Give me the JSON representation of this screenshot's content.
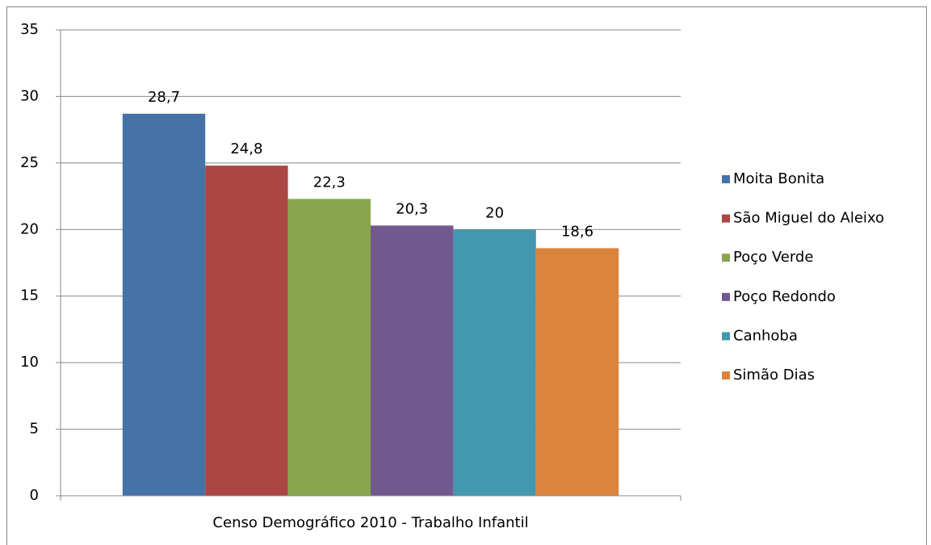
{
  "chart_data": {
    "type": "bar",
    "categories": [
      "Censo Demográfico 2010 - Trabalho Infantil"
    ],
    "series": [
      {
        "name": "Moita Bonita",
        "color": "#4572a7",
        "values": [
          28.7
        ],
        "value_labels": [
          "28,7"
        ]
      },
      {
        "name": "São Miguel do Aleixo",
        "color": "#aa4643",
        "values": [
          24.8
        ],
        "value_labels": [
          "24,8"
        ]
      },
      {
        "name": "Poço Verde",
        "color": "#89a54e",
        "values": [
          22.3
        ],
        "value_labels": [
          "22,3"
        ]
      },
      {
        "name": "Poço Redondo",
        "color": "#71588f",
        "values": [
          20.3
        ],
        "value_labels": [
          "20,3"
        ]
      },
      {
        "name": "Canhoba",
        "color": "#4198af",
        "values": [
          20
        ],
        "value_labels": [
          "20"
        ]
      },
      {
        "name": "Simão Dias",
        "color": "#db843d",
        "values": [
          18.6
        ],
        "value_labels": [
          "18,6"
        ]
      }
    ],
    "ylim": [
      0,
      35
    ],
    "yticks": [
      0,
      5,
      10,
      15,
      20,
      25,
      30,
      35
    ],
    "grid": true,
    "legend": "right"
  }
}
